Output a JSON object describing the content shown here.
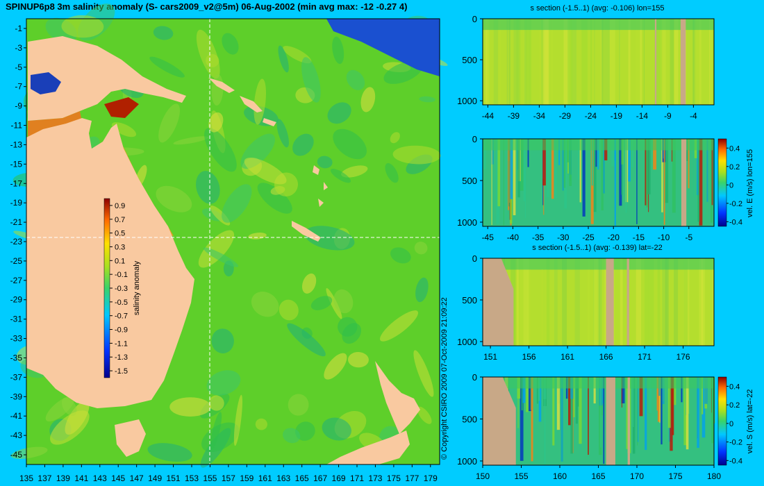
{
  "main_title": "SPINUP6p8 3m salinity anomaly (S- cars2009_v2@5m) 06-Aug-2002 (min avg max: -12 -0.27 4)",
  "copyright": "© Copyright CSIRO 2009   07-Oct-2009 21:09:22",
  "colors": {
    "background": "#00ccff",
    "land": "#f9c9a0",
    "section_land": "#c8a887",
    "crosshair": "#ffffff",
    "field_base": "#5ecf2a"
  },
  "chart_data": [
    {
      "name": "salinity-map",
      "type": "heatmap",
      "x_ticks": [
        "135",
        "137",
        "139",
        "141",
        "143",
        "145",
        "147",
        "149",
        "151",
        "153",
        "155",
        "157",
        "159",
        "161",
        "163",
        "165",
        "167",
        "169",
        "171",
        "173",
        "175",
        "177",
        "179"
      ],
      "y_ticks": [
        "-1",
        "-3",
        "-5",
        "-7",
        "-9",
        "-11",
        "-13",
        "-15",
        "-17",
        "-19",
        "-21",
        "-23",
        "-25",
        "-27",
        "-29",
        "-31",
        "-33",
        "-35",
        "-37",
        "-39",
        "-41",
        "-43",
        "-45"
      ],
      "xlim": [
        135,
        180
      ],
      "ylim": [
        -46,
        0
      ],
      "crosshair": {
        "lon": 155,
        "lat": -22
      },
      "colorbar": {
        "label": "salinity anomaly",
        "ticks": [
          "0.9",
          "0.7",
          "0.5",
          "0.3",
          "0.1",
          "-0.1",
          "-0.3",
          "-0.5",
          "-0.7",
          "-0.9",
          "-1.1",
          "-1.3",
          "-1.5"
        ],
        "range": [
          -1.6,
          1.0
        ]
      }
    },
    {
      "name": "salinity-section-lon155",
      "type": "heatmap",
      "title": "s section (-1.5..1) (avg: -0.106) lon=155",
      "x_ticks": [
        "-44",
        "-39",
        "-34",
        "-29",
        "-24",
        "-19",
        "-14",
        "-9",
        "-4"
      ],
      "y_ticks": [
        "0",
        "500",
        "1000"
      ],
      "xlim": [
        -45,
        0
      ],
      "ylim": [
        1050,
        0
      ]
    },
    {
      "name": "vel-east-section-lon155",
      "type": "heatmap",
      "x_ticks": [
        "-45",
        "-40",
        "-35",
        "-30",
        "-25",
        "-20",
        "-15",
        "-10",
        "-5"
      ],
      "y_ticks": [
        "0",
        "500",
        "1000"
      ],
      "xlim": [
        -46,
        0
      ],
      "ylim": [
        1050,
        0
      ],
      "colorbar": {
        "label": "vel. E (m/s) lon=155",
        "ticks": [
          "0.4",
          "0.2",
          "0",
          "-0.2",
          "-0.4"
        ],
        "range": [
          -0.45,
          0.5
        ]
      }
    },
    {
      "name": "salinity-section-lat-22",
      "type": "heatmap",
      "title": "s section (-1.5..1) (avg: -0.139) lat=-22",
      "x_ticks": [
        "151",
        "156",
        "161",
        "166",
        "171",
        "176"
      ],
      "y_ticks": [
        "0",
        "500",
        "1000"
      ],
      "xlim": [
        150,
        180
      ],
      "ylim": [
        1050,
        0
      ]
    },
    {
      "name": "vel-south-section-lat-22",
      "type": "heatmap",
      "x_ticks": [
        "150",
        "155",
        "160",
        "165",
        "170",
        "175",
        "180"
      ],
      "y_ticks": [
        "0",
        "500",
        "1000"
      ],
      "xlim": [
        150,
        180
      ],
      "ylim": [
        1050,
        0
      ],
      "colorbar": {
        "label": "vel. S (m/s) lat=-22",
        "ticks": [
          "0.4",
          "0.2",
          "0",
          "-0.2",
          "-0.4"
        ],
        "range": [
          -0.45,
          0.5
        ]
      }
    }
  ]
}
